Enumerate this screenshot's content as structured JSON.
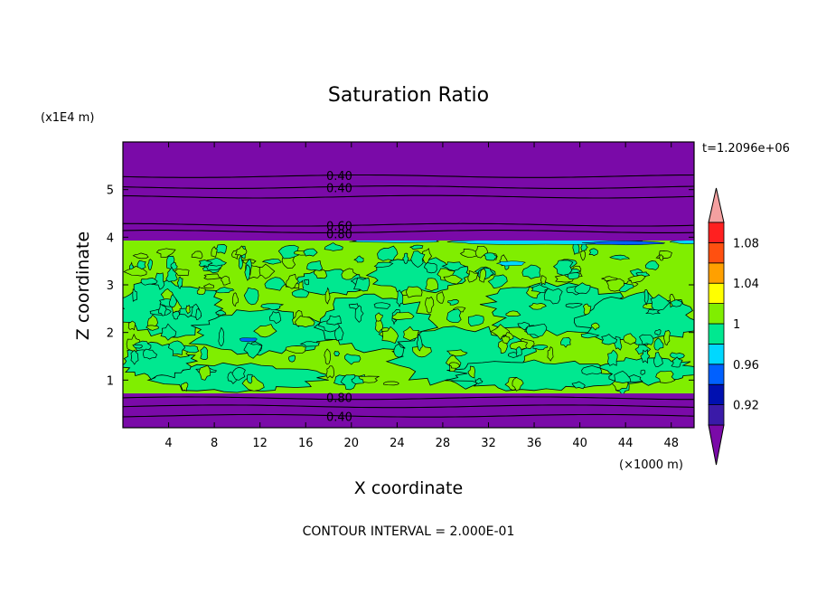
{
  "chart_data": {
    "type": "heatmap",
    "title": "Saturation Ratio",
    "xlabel": "X coordinate",
    "ylabel": "Z coordinate",
    "x_unit": "(×1000 m)",
    "y_unit": "(x1E4 m)",
    "xlim": [
      0,
      50
    ],
    "ylim": [
      0,
      6
    ],
    "x_ticks": [
      4,
      8,
      12,
      16,
      20,
      24,
      28,
      32,
      36,
      40,
      44,
      48
    ],
    "y_ticks": [
      1,
      2,
      3,
      4,
      5
    ],
    "time_label": "t=1.2096e+06",
    "contour_interval_label": "CONTOUR INTERVAL = 2.000E-01",
    "contour_labels": [
      {
        "text": "0.40",
        "x": 17.8,
        "y": 5.28
      },
      {
        "text": "0.40",
        "x": 17.8,
        "y": 5.02
      },
      {
        "text": "0.60",
        "x": 17.8,
        "y": 4.22
      },
      {
        "text": "0.80",
        "x": 17.8,
        "y": 4.05
      },
      {
        "text": "0.80",
        "x": 17.8,
        "y": 0.62
      },
      {
        "text": "0.40",
        "x": 17.8,
        "y": 0.22
      }
    ],
    "colorbar": {
      "levels": [
        0.9,
        0.92,
        0.94,
        0.96,
        0.98,
        1.0,
        1.02,
        1.04,
        1.06,
        1.08,
        1.1
      ],
      "tick_labels": [
        "0.92",
        "0.96",
        "1",
        "1.04",
        "1.08"
      ],
      "below_color": "#7a0aa8",
      "above_color": "#f4a0a0",
      "colors": [
        "#3a1aa8",
        "#0010b0",
        "#0060ff",
        "#00d8ff",
        "#00e890",
        "#80ee00",
        "#ffff00",
        "#ffa000",
        "#ff5010",
        "#ff2020"
      ]
    },
    "bands": {
      "dry_color": "#7a0aa8",
      "moist_lower": 0.72,
      "moist_upper": 3.93,
      "level_lines": [
        0.25,
        0.45,
        0.62,
        4.12,
        4.26,
        4.85,
        5.05,
        5.28
      ]
    }
  }
}
